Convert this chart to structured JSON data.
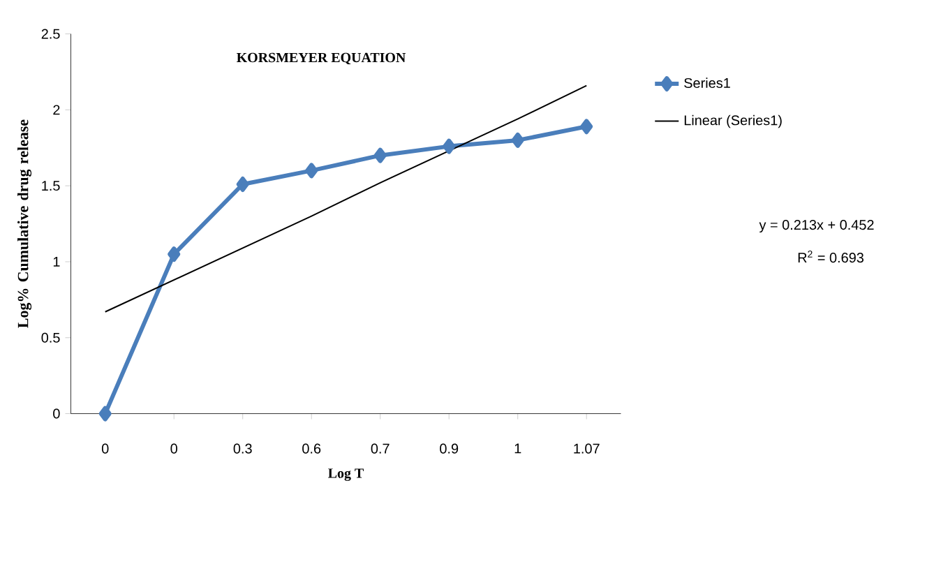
{
  "chart_data": {
    "type": "line",
    "title": "KORSMEYER EQUATION",
    "xlabel": "Log T",
    "ylabel": "Log% Cumulative drug release",
    "categories": [
      "0",
      "0",
      "0.3",
      "0.6",
      "0.7",
      "0.9",
      "1",
      "1.07"
    ],
    "series": [
      {
        "name": "Series1",
        "color": "#4a7ebb",
        "marker": "diamond",
        "values": [
          0,
          1.05,
          1.51,
          1.6,
          1.7,
          1.76,
          1.8,
          1.89
        ]
      },
      {
        "name": "Linear (Series1)",
        "type": "line",
        "color": "#000000",
        "marker": "none",
        "values": [
          0.67,
          0.88,
          1.09,
          1.3,
          1.52,
          1.73,
          1.94,
          2.16
        ]
      }
    ],
    "ylim": [
      0,
      2.5
    ],
    "yticks": [
      0,
      0.5,
      1,
      1.5,
      2,
      2.5
    ],
    "legend": "right",
    "annotations": [
      "y = 0.213x + 0.452",
      "R$^{2}$ = 0.693"
    ]
  }
}
